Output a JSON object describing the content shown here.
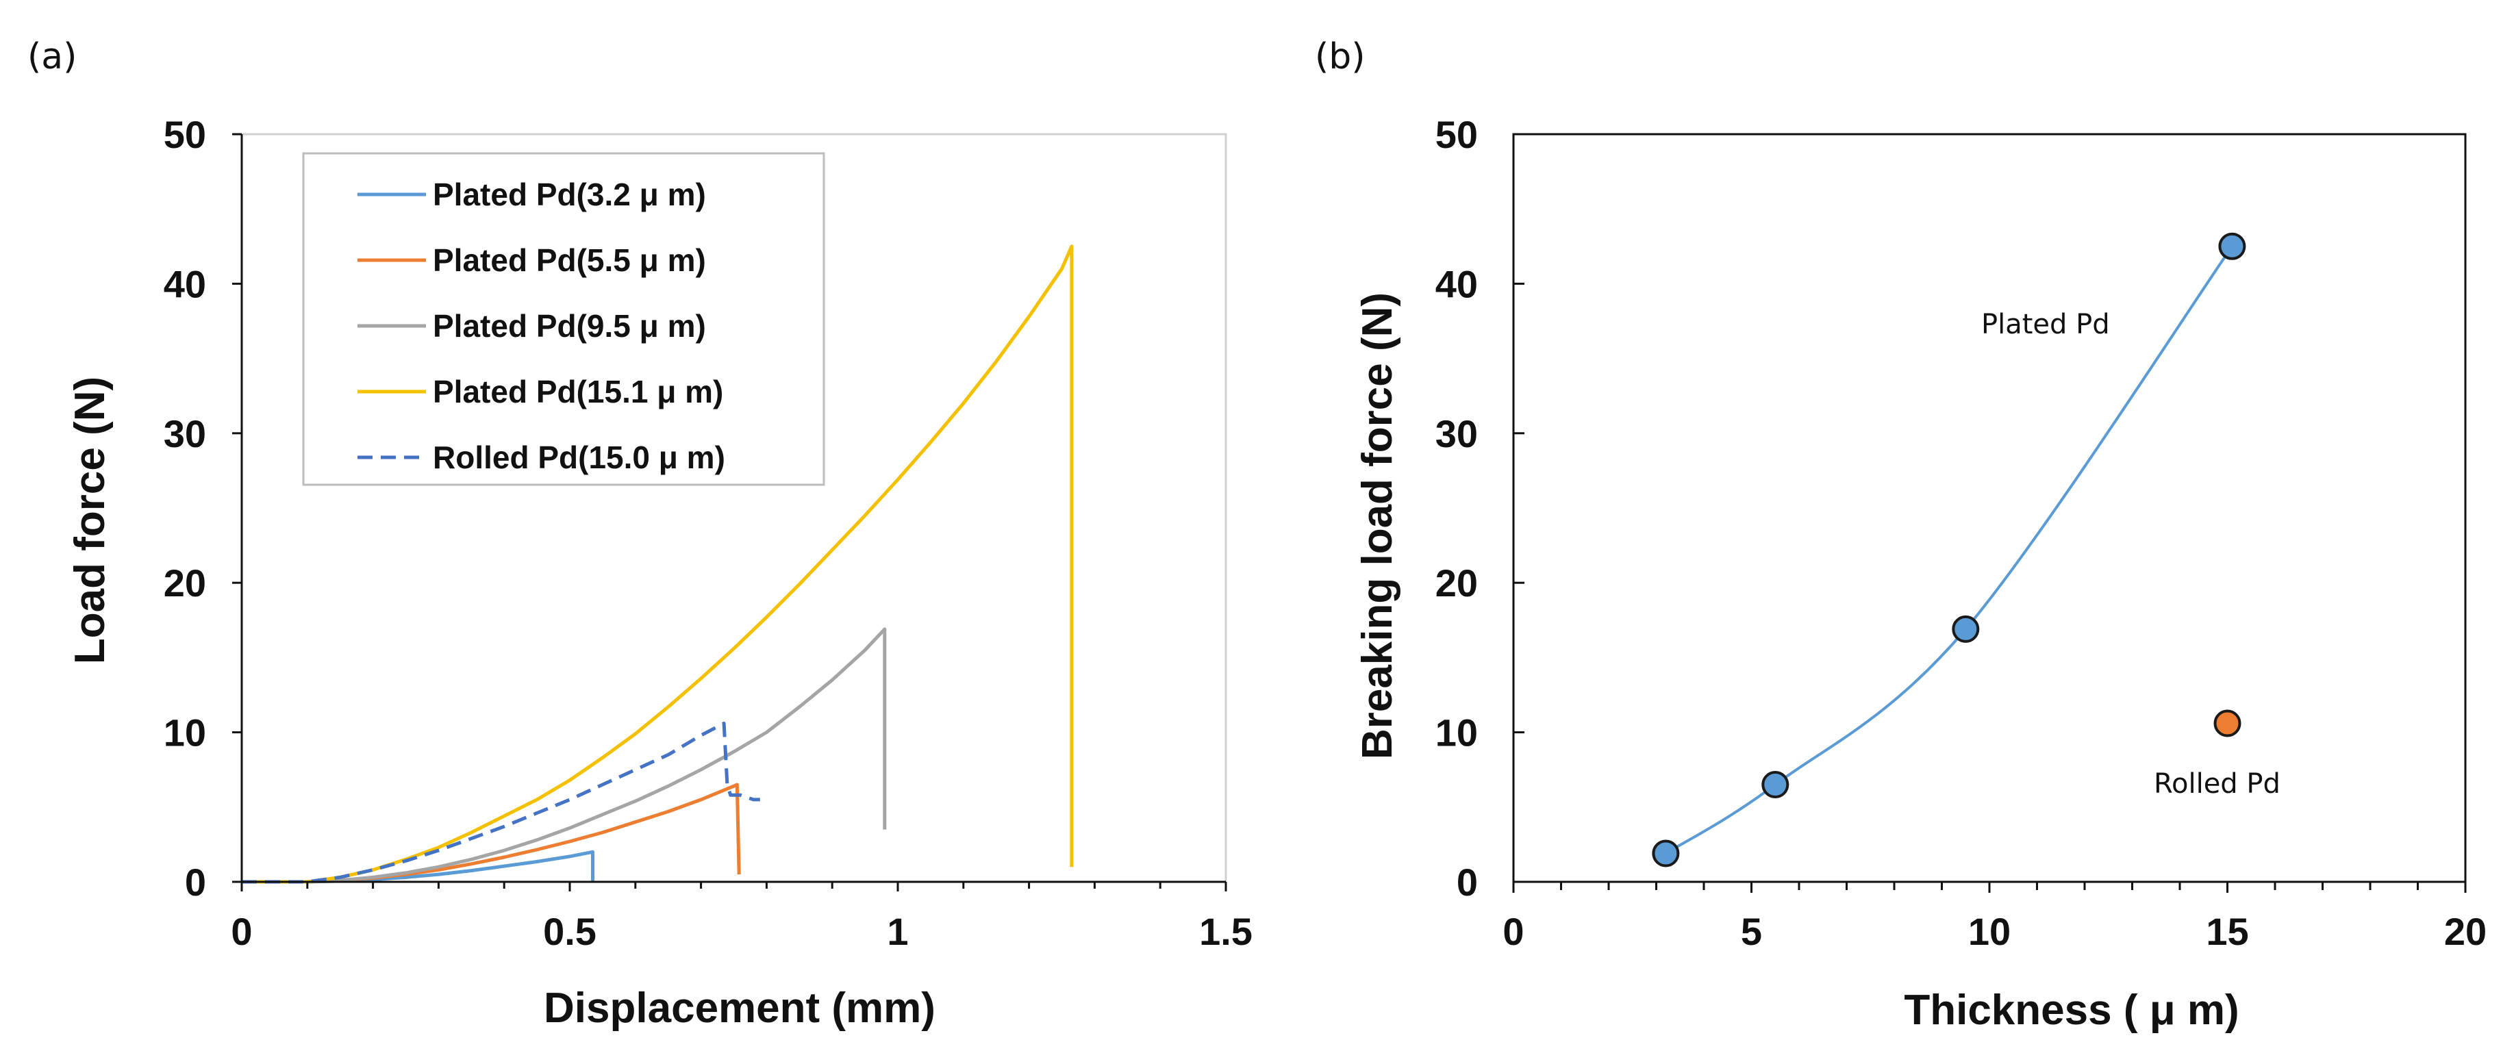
{
  "panels": {
    "a": "(a)",
    "b": "(b)"
  },
  "chart_data": [
    {
      "type": "line",
      "panel": "(a)",
      "xlabel": "Displacement (mm)",
      "ylabel": "Load force (N)",
      "xlim": [
        0,
        1.5
      ],
      "ylim": [
        0,
        50
      ],
      "xticks": [
        0,
        0.5,
        1,
        1.5
      ],
      "xtick_labels": [
        "0",
        "0.5",
        "1",
        "1.5"
      ],
      "yticks": [
        0,
        10,
        20,
        30,
        40,
        50
      ],
      "ytick_labels": [
        "0",
        "10",
        "20",
        "30",
        "40",
        "50"
      ],
      "legend_position": "top-left",
      "series": [
        {
          "name": "Plated Pd(3.2 μ m)",
          "color": "#5b9bd5",
          "dash": false,
          "x": [
            0,
            0.1,
            0.15,
            0.2,
            0.25,
            0.3,
            0.35,
            0.4,
            0.45,
            0.5,
            0.535,
            0.535
          ],
          "y": [
            0,
            0,
            0.05,
            0.15,
            0.3,
            0.5,
            0.75,
            1.05,
            1.35,
            1.7,
            2.0,
            0
          ]
        },
        {
          "name": "Plated Pd(5.5 μ m)",
          "color": "#ed7d31",
          "dash": false,
          "x": [
            0,
            0.1,
            0.15,
            0.2,
            0.25,
            0.3,
            0.35,
            0.4,
            0.45,
            0.5,
            0.55,
            0.6,
            0.65,
            0.7,
            0.75,
            0.755,
            0.758
          ],
          "y": [
            0,
            0,
            0.1,
            0.25,
            0.5,
            0.8,
            1.2,
            1.65,
            2.15,
            2.7,
            3.3,
            4.0,
            4.7,
            5.5,
            6.4,
            6.5,
            0.5
          ]
        },
        {
          "name": "Plated Pd(9.5 μ m)",
          "color": "#a5a5a5",
          "dash": false,
          "x": [
            0,
            0.1,
            0.15,
            0.2,
            0.25,
            0.3,
            0.35,
            0.4,
            0.45,
            0.5,
            0.55,
            0.6,
            0.65,
            0.7,
            0.75,
            0.8,
            0.85,
            0.9,
            0.95,
            0.98,
            0.98
          ],
          "y": [
            0,
            0,
            0.1,
            0.3,
            0.6,
            1.0,
            1.5,
            2.1,
            2.8,
            3.6,
            4.5,
            5.4,
            6.4,
            7.5,
            8.7,
            10.0,
            11.7,
            13.5,
            15.5,
            16.9,
            3.5
          ]
        },
        {
          "name": "Plated Pd(15.1 μ m)",
          "color": "#f5c000",
          "dash": false,
          "x": [
            0,
            0.1,
            0.15,
            0.2,
            0.25,
            0.3,
            0.35,
            0.4,
            0.45,
            0.5,
            0.55,
            0.6,
            0.65,
            0.7,
            0.75,
            0.8,
            0.85,
            0.9,
            0.95,
            1.0,
            1.05,
            1.1,
            1.15,
            1.2,
            1.25,
            1.265,
            1.265
          ],
          "y": [
            0,
            0,
            0.3,
            0.8,
            1.5,
            2.3,
            3.3,
            4.4,
            5.5,
            6.8,
            8.3,
            9.9,
            11.7,
            13.6,
            15.6,
            17.7,
            19.9,
            22.2,
            24.5,
            26.9,
            29.4,
            32.0,
            34.8,
            37.8,
            41.0,
            42.5,
            1.0
          ]
        },
        {
          "name": "Rolled Pd(15.0 μ m)",
          "color": "#4472c4",
          "dash": true,
          "x": [
            0,
            0.1,
            0.15,
            0.2,
            0.25,
            0.3,
            0.35,
            0.4,
            0.45,
            0.5,
            0.55,
            0.6,
            0.65,
            0.7,
            0.735,
            0.74,
            0.745,
            0.76,
            0.78,
            0.79
          ],
          "y": [
            0,
            0,
            0.3,
            0.8,
            1.4,
            2.1,
            2.9,
            3.7,
            4.6,
            5.5,
            6.5,
            7.5,
            8.5,
            9.8,
            10.6,
            6.5,
            5.8,
            5.8,
            5.5,
            5.5
          ]
        }
      ]
    },
    {
      "type": "scatter",
      "panel": "(b)",
      "xlabel": "Thickness ( μ m)",
      "ylabel": "Breaking load force (N)",
      "xlim": [
        0,
        20
      ],
      "ylim": [
        0,
        50
      ],
      "xticks": [
        0,
        5,
        10,
        15,
        20
      ],
      "xtick_labels": [
        "0",
        "5",
        "10",
        "15",
        "20"
      ],
      "yticks": [
        0,
        10,
        20,
        30,
        40,
        50
      ],
      "ytick_labels": [
        "0",
        "10",
        "20",
        "30",
        "40",
        "50"
      ],
      "series": [
        {
          "name": "Plated Pd",
          "color": "#5b9bd5",
          "smooth_line": true,
          "x": [
            3.2,
            5.5,
            9.5,
            15.1
          ],
          "y": [
            1.9,
            6.5,
            16.9,
            42.5
          ],
          "label": "Plated Pd"
        },
        {
          "name": "Rolled Pd",
          "color": "#ed7d31",
          "smooth_line": false,
          "x": [
            15.0
          ],
          "y": [
            10.6
          ],
          "label": "Rolled Pd"
        }
      ]
    }
  ]
}
